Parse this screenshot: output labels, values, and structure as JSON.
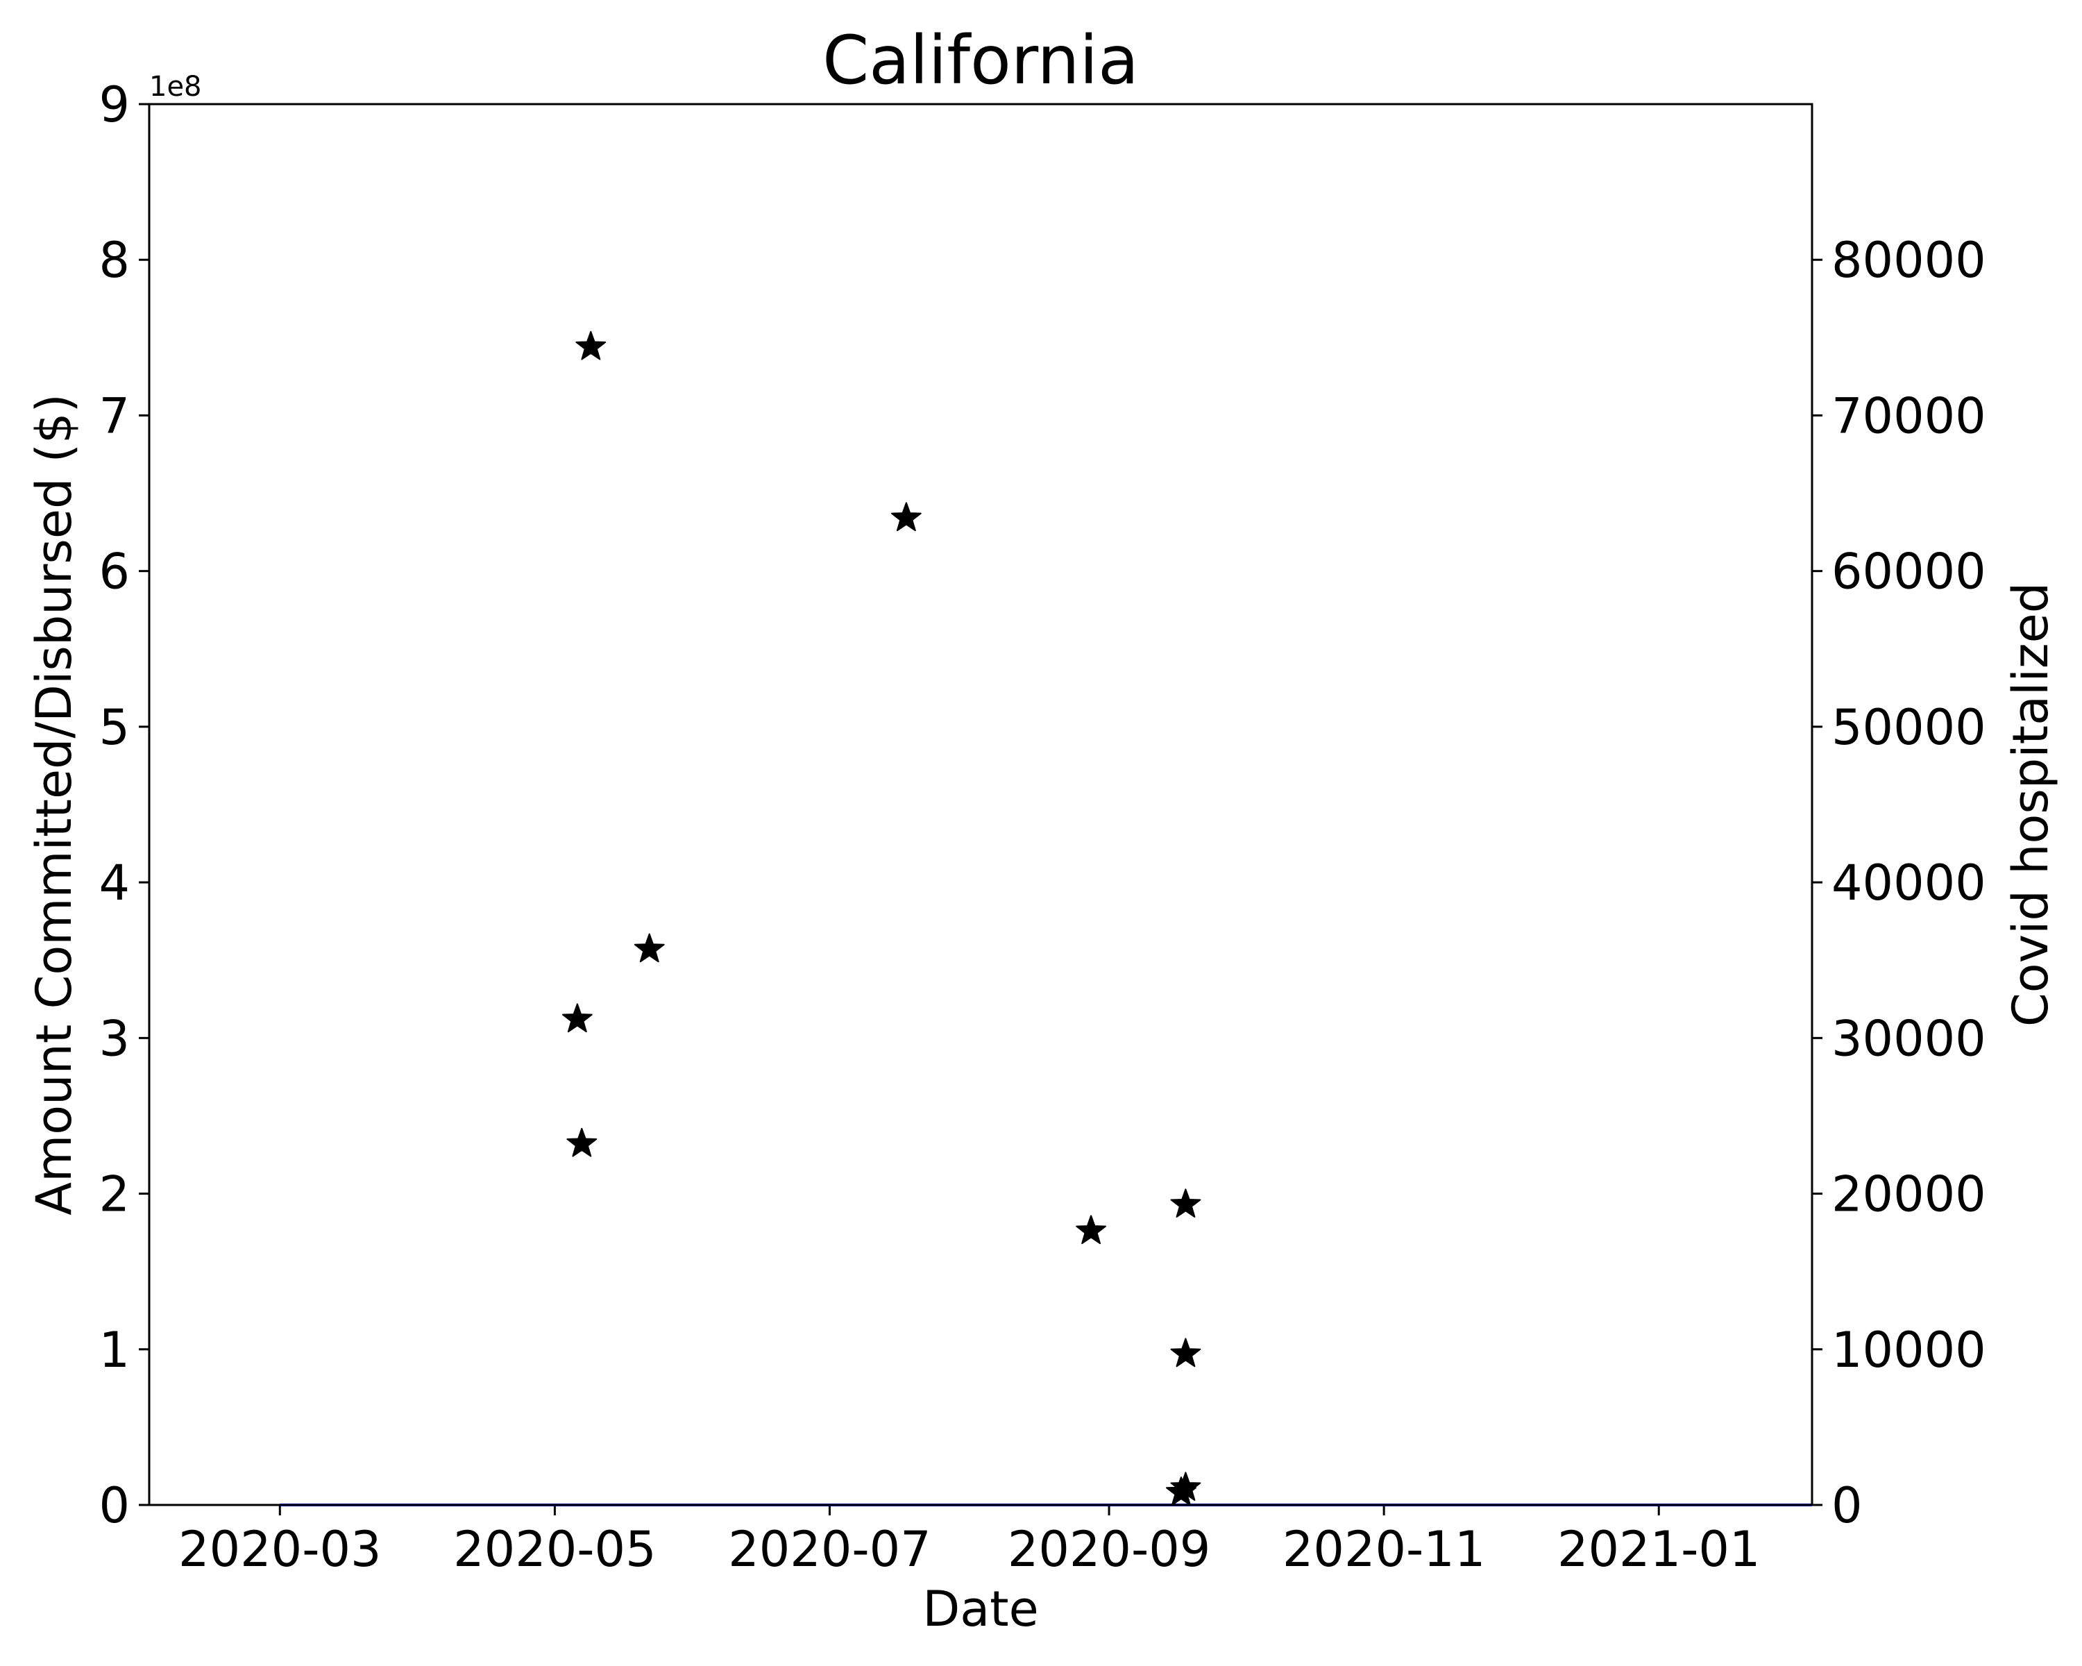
{
  "chart_data": {
    "type": "scatter",
    "title": "California",
    "xlabel": "Date",
    "ylabel": "Amount Committed/Disbursed ($)",
    "ylabel_right": "Covid hospitalized",
    "ylabel_right_color": "#0000ff",
    "y_offset_text": "1e8",
    "x_ticks": [
      "2020-03",
      "2020-05",
      "2020-07",
      "2020-09",
      "2020-11",
      "2021-01"
    ],
    "xlim": [
      "2020-02-01",
      "2021-02-04"
    ],
    "ylim": [
      0,
      9
    ],
    "y_ticks": [
      "0",
      "1",
      "2",
      "3",
      "4",
      "5",
      "6",
      "7",
      "8",
      "9"
    ],
    "ylim_right": [
      0,
      90000
    ],
    "y_ticks_right": [
      "0",
      "10000",
      "20000",
      "30000",
      "40000",
      "50000",
      "60000",
      "70000",
      "80000"
    ],
    "grid": false,
    "series": [
      {
        "marker": "star",
        "color": "#000000",
        "points": [
          {
            "x": "2020-05-09",
            "y": 7.44
          },
          {
            "x": "2020-05-06",
            "y": 3.12
          },
          {
            "x": "2020-05-07",
            "y": 2.32
          },
          {
            "x": "2020-05-22",
            "y": 3.57
          },
          {
            "x": "2020-07-18",
            "y": 6.34
          },
          {
            "x": "2020-08-28",
            "y": 1.76
          },
          {
            "x": "2020-09-18",
            "y": 1.93
          },
          {
            "x": "2020-09-18",
            "y": 0.97
          },
          {
            "x": "2020-09-18",
            "y": 0.11
          },
          {
            "x": "2020-09-17",
            "y": 0.08
          }
        ]
      },
      {
        "name": "Covid hospitalized",
        "type": "line",
        "axis": "right",
        "color": "#0000ff",
        "x_range": [
          "2020-03-01",
          "2021-02-04"
        ],
        "value": 0
      }
    ]
  }
}
